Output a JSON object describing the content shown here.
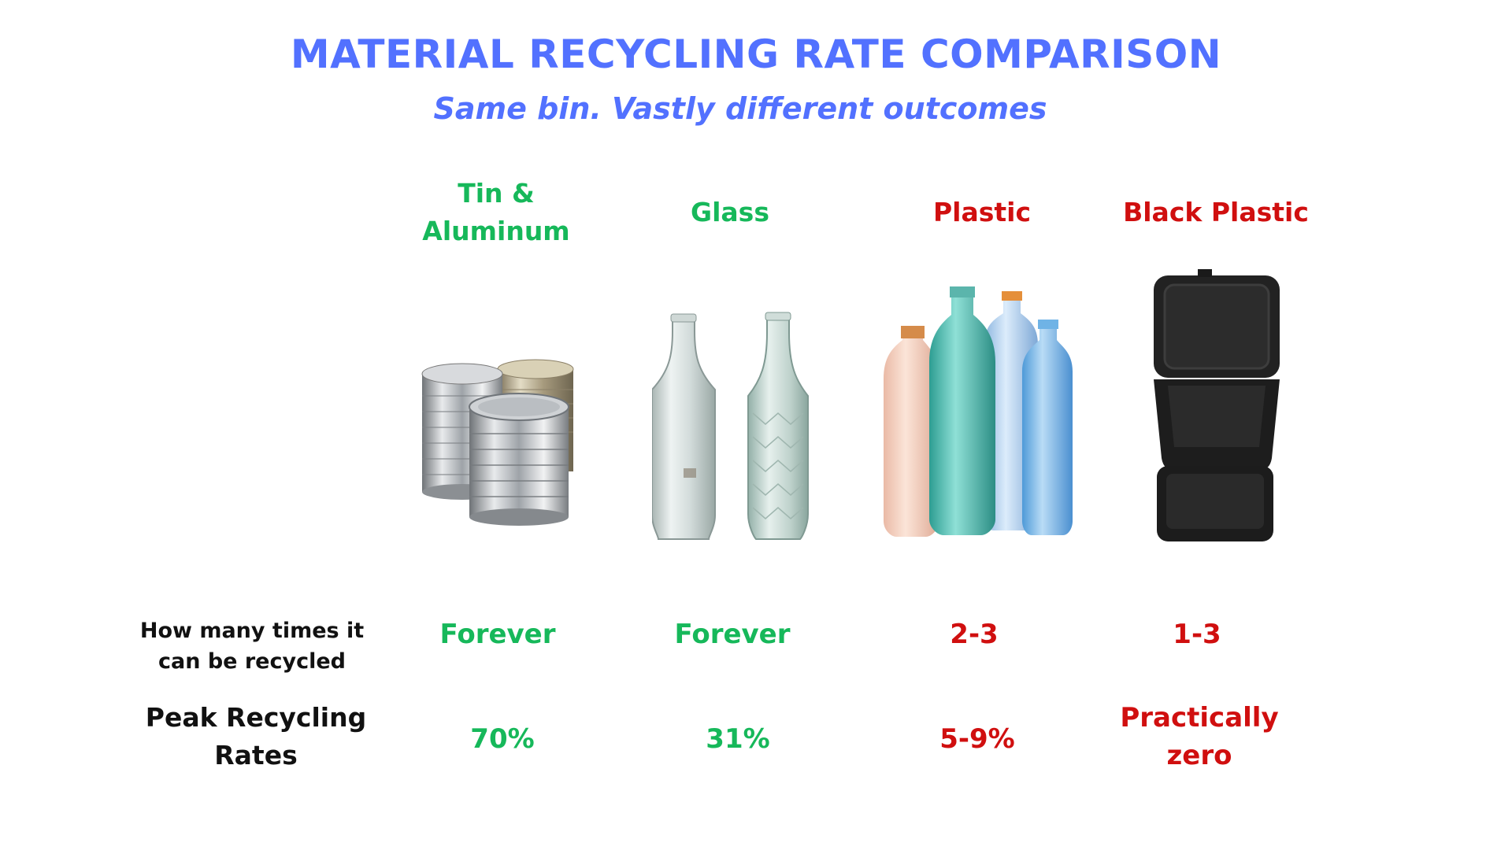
{
  "title": "MATERIAL RECYCLING RATE COMPARISON",
  "subtitle": "Same bin. Vastly different outcomes",
  "colors": {
    "title": "#5271ff",
    "good": "#16b85a",
    "bad": "#d00f0f"
  },
  "columns": [
    {
      "name_line1": "Tin &",
      "name_line2": "Aluminum",
      "times": "Forever",
      "peak": "70%",
      "status": "good",
      "image": "tin-cans-photo"
    },
    {
      "name": "Glass",
      "times": "Forever",
      "peak": "31%",
      "status": "good",
      "image": "glass-bottles-photo"
    },
    {
      "name": "Plastic",
      "times": "2-3",
      "peak": "5-9%",
      "status": "bad",
      "image": "plastic-bottles-photo"
    },
    {
      "name": "Black Plastic",
      "times": "1-3",
      "peak_line1": "Practically",
      "peak_line2": "zero",
      "status": "bad",
      "image": "black-plastic-container-photo"
    }
  ],
  "rows": {
    "times_label_line1": "How many times it",
    "times_label_line2": "can be recycled",
    "peak_label_line1": "Peak Recycling",
    "peak_label_line2": "Rates"
  }
}
